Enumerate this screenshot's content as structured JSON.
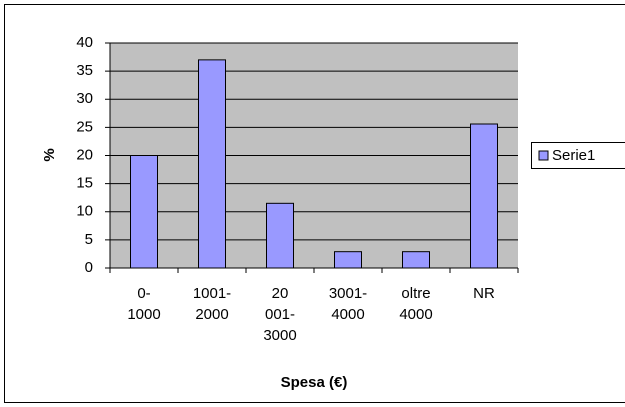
{
  "chart_data": {
    "type": "bar",
    "y_label": "%",
    "x_label": "Spesa (€)",
    "categories": [
      "0-\n1000",
      "1001-\n2000",
      "20\n001-\n3000",
      "3001-\n4000",
      "oltre\n4000",
      "NR"
    ],
    "series": [
      {
        "name": "Serie1",
        "color": "#9999ff",
        "values": [
          20,
          37,
          11.5,
          2.9,
          2.9,
          25.6
        ]
      }
    ],
    "ylim": [
      0,
      40
    ],
    "yticks": [
      0,
      5,
      10,
      15,
      20,
      25,
      30,
      35,
      40
    ],
    "grid": true,
    "legend": "right"
  }
}
